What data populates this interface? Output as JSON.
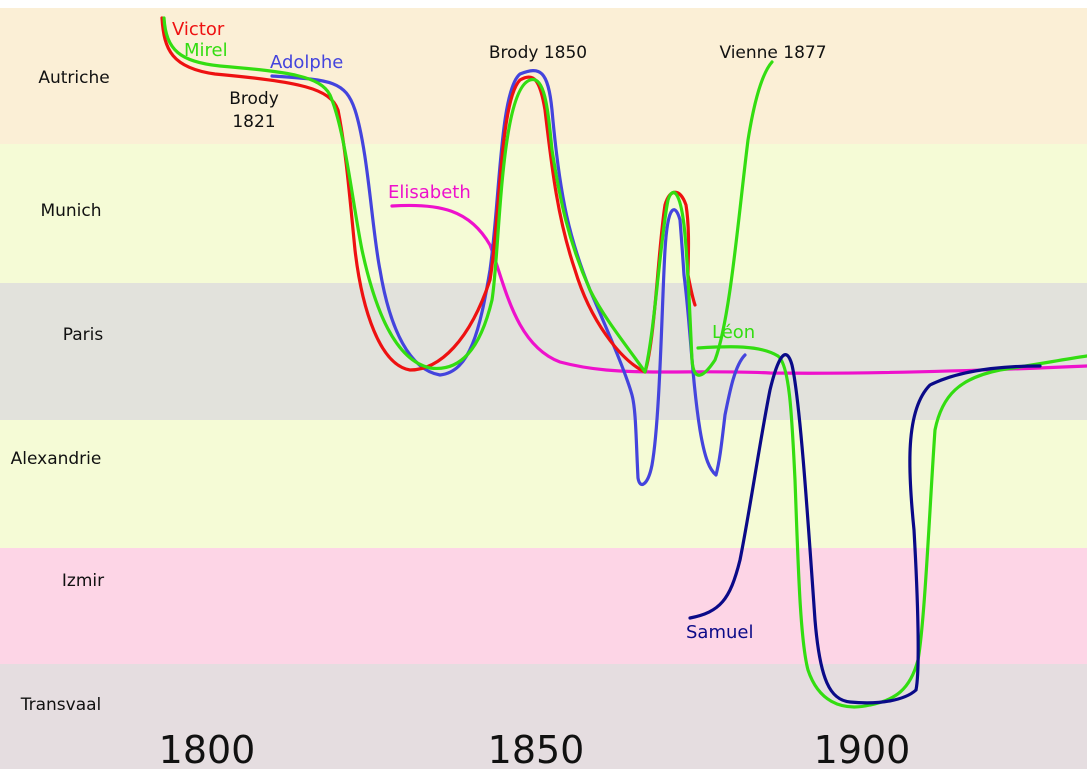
{
  "places": [
    {
      "name": "Autriche",
      "color": "#fbefd6"
    },
    {
      "name": "Munich",
      "color": "#f5fbd6"
    },
    {
      "name": "Paris",
      "color": "#e2e2dc"
    },
    {
      "name": "Alexandrie",
      "color": "#f5fbd6"
    },
    {
      "name": "Izmir",
      "color": "#fdd5e6"
    },
    {
      "name": "Transvaal",
      "color": "#e5dde0"
    }
  ],
  "years": [
    "1800",
    "1850",
    "1900"
  ],
  "people": [
    {
      "name": "Victor",
      "color": "#ee1111"
    },
    {
      "name": "Mirel",
      "color": "#33dd11"
    },
    {
      "name": "Adolphe",
      "color": "#4444dd"
    },
    {
      "name": "Elisabeth",
      "color": "#ee11cc"
    },
    {
      "name": "Léon",
      "color": "#33dd11"
    },
    {
      "name": "Samuel",
      "color": "#0a0a88"
    }
  ],
  "annotations": {
    "brody_1821_line1": "Brody",
    "brody_1821_line2": "1821",
    "brody_1850": "Brody 1850",
    "vienne_1877": "Vienne 1877"
  }
}
